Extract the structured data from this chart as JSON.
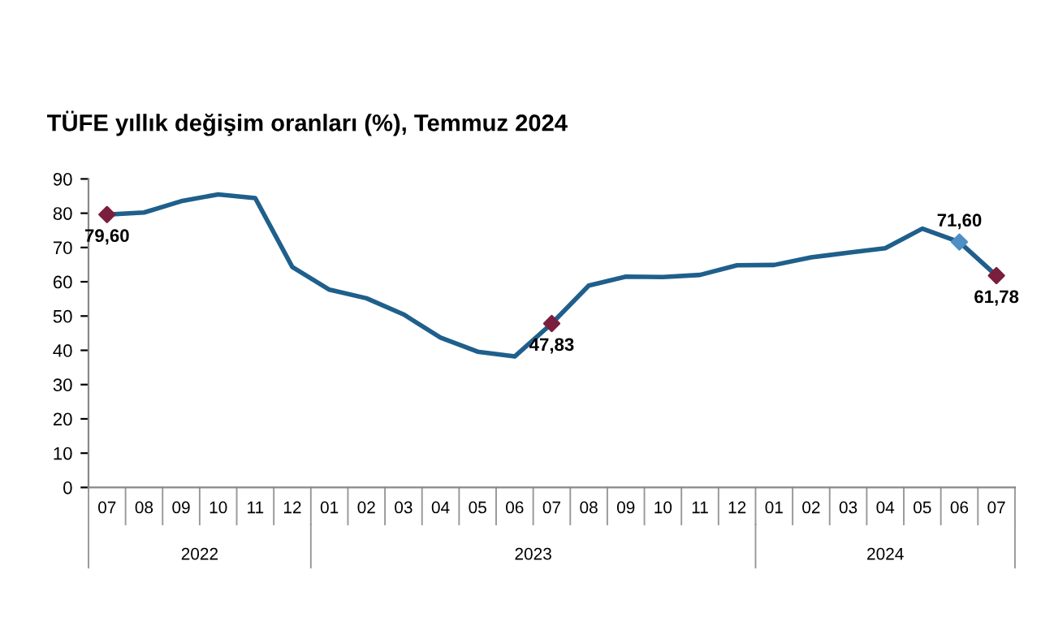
{
  "chart_data": {
    "type": "line",
    "title": "TÜFE yıllık değişim oranları (%), Temmuz 2024",
    "categories": [
      "07",
      "08",
      "09",
      "10",
      "11",
      "12",
      "01",
      "02",
      "03",
      "04",
      "05",
      "06",
      "07",
      "08",
      "09",
      "10",
      "11",
      "12",
      "01",
      "02",
      "03",
      "04",
      "05",
      "06",
      "07"
    ],
    "series": [
      {
        "color": "#1f5f8b",
        "marker": "none",
        "values": [
          79.6,
          80.2,
          83.5,
          85.5,
          84.4,
          64.3,
          57.7,
          55.2,
          50.5,
          43.7,
          39.6,
          38.2,
          47.83,
          58.9,
          61.5,
          61.4,
          62.0,
          64.8,
          64.9,
          67.1,
          68.5,
          69.8,
          75.5,
          71.6,
          61.78
        ],
        "value_labels": [
          "79,60",
          null,
          null,
          null,
          null,
          null,
          null,
          null,
          null,
          null,
          null,
          null,
          "47,83",
          null,
          null,
          null,
          null,
          null,
          null,
          null,
          null,
          null,
          null,
          "71,60",
          "61,78"
        ]
      },
      {
        "type": "scatter",
        "marker": "diamond",
        "values": [
          79.6,
          null,
          null,
          null,
          null,
          null,
          null,
          null,
          null,
          null,
          null,
          null,
          47.83,
          null,
          null,
          null,
          null,
          null,
          null,
          null,
          null,
          null,
          null,
          71.6,
          61.78
        ],
        "colors": [
          "#7a1f3d",
          null,
          null,
          null,
          null,
          null,
          null,
          null,
          null,
          null,
          null,
          null,
          "#7a1f3d",
          null,
          null,
          null,
          null,
          null,
          null,
          null,
          null,
          null,
          null,
          "#4f8fc6",
          "#7a1f3d"
        ]
      }
    ],
    "ylim": [
      0,
      90
    ],
    "yticks": [
      0,
      10,
      20,
      30,
      40,
      50,
      60,
      70,
      80,
      90
    ],
    "annotations": [
      "2022",
      "2023",
      "2024"
    ],
    "grid": false,
    "legend": false
  }
}
